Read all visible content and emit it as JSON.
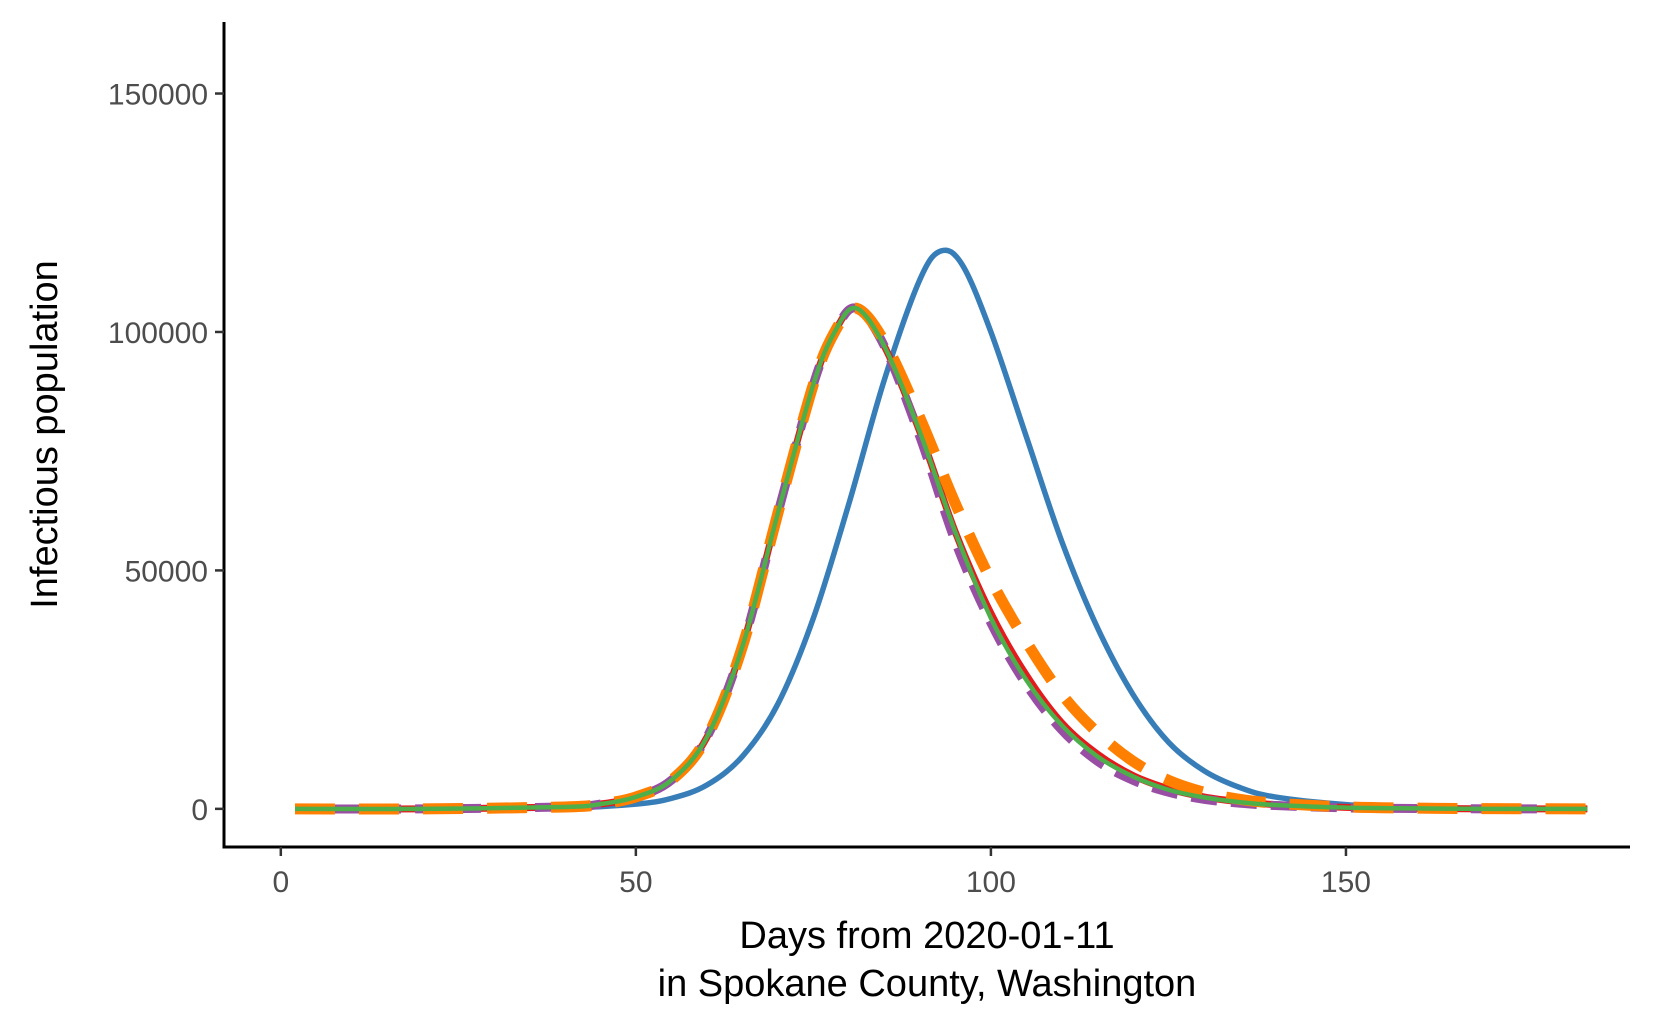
{
  "chart_data": {
    "type": "line",
    "title": "",
    "xlabel_line1": "Days from 2020-01-11",
    "xlabel_line2": "in Spokane County, Washington",
    "ylabel": "Infectious population",
    "xlim": [
      -8,
      190
    ],
    "ylim": [
      -8000,
      165000
    ],
    "x_ticks": [
      0,
      50,
      100,
      150
    ],
    "y_ticks": [
      0,
      50000,
      100000,
      150000
    ],
    "grid": false,
    "legend": "none",
    "series": [
      {
        "color": "#377EB8",
        "style": "solid",
        "x": [
          2,
          20,
          40,
          50,
          55,
          60,
          65,
          70,
          75,
          80,
          85,
          90,
          93,
          96,
          100,
          105,
          110,
          115,
          120,
          125,
          130,
          135,
          140,
          150,
          160,
          170,
          184
        ],
        "y": [
          0,
          0,
          200,
          1000,
          2200,
          5000,
          11000,
          22000,
          40000,
          64000,
          90000,
          111000,
          117000,
          114000,
          100000,
          78000,
          56000,
          38000,
          24000,
          14000,
          8000,
          4500,
          2500,
          900,
          300,
          100,
          0
        ]
      },
      {
        "color": "#E41A1C",
        "style": "solid",
        "x": [
          2,
          20,
          40,
          45,
          50,
          55,
          60,
          65,
          70,
          75,
          78,
          81,
          85,
          90,
          95,
          100,
          105,
          110,
          115,
          120,
          125,
          130,
          135,
          140,
          150,
          160,
          170,
          184
        ],
        "y": [
          0,
          0,
          400,
          1000,
          2500,
          6000,
          15000,
          34000,
          62000,
          89000,
          100000,
          105000,
          97000,
          79000,
          58000,
          41000,
          28000,
          18000,
          11500,
          7000,
          4200,
          2500,
          1500,
          900,
          300,
          100,
          0,
          0
        ]
      },
      {
        "color": "#984EA3",
        "style": "dashed",
        "x": [
          2,
          20,
          40,
          45,
          50,
          55,
          60,
          65,
          70,
          75,
          78,
          81,
          85,
          90,
          95,
          100,
          105,
          110,
          115,
          120,
          125,
          130,
          135,
          140,
          150,
          160,
          170,
          184
        ],
        "y": [
          0,
          0,
          400,
          1000,
          2500,
          6000,
          15000,
          34000,
          62000,
          89000,
          100000,
          105000,
          97000,
          78000,
          56000,
          39000,
          26000,
          16500,
          10000,
          6000,
          3500,
          2000,
          1200,
          700,
          200,
          80,
          0,
          0
        ]
      },
      {
        "color": "#FF7F00",
        "style": "longdash",
        "x": [
          2,
          20,
          40,
          45,
          50,
          55,
          60,
          65,
          70,
          75,
          78,
          81,
          85,
          90,
          95,
          100,
          105,
          110,
          115,
          120,
          125,
          130,
          135,
          140,
          150,
          160,
          170,
          184
        ],
        "y": [
          0,
          0,
          400,
          1000,
          2500,
          6000,
          15000,
          34000,
          62000,
          89000,
          100000,
          105000,
          98000,
          82000,
          64000,
          48000,
          35000,
          24000,
          16000,
          10000,
          6000,
          3500,
          2000,
          1200,
          400,
          150,
          50,
          0
        ]
      },
      {
        "color": "#4DAF4A",
        "style": "solid",
        "x": [
          2,
          20,
          40,
          45,
          50,
          55,
          60,
          65,
          70,
          75,
          78,
          81,
          85,
          90,
          95,
          100,
          105,
          110,
          115,
          120,
          125,
          130,
          135,
          140,
          150,
          160,
          170,
          184
        ],
        "y": [
          0,
          0,
          400,
          1000,
          2500,
          6000,
          15000,
          34000,
          62000,
          89000,
          100000,
          105000,
          97000,
          79000,
          58000,
          40000,
          27000,
          17500,
          11000,
          6800,
          4000,
          2400,
          1400,
          800,
          250,
          90,
          0,
          0
        ]
      }
    ]
  }
}
